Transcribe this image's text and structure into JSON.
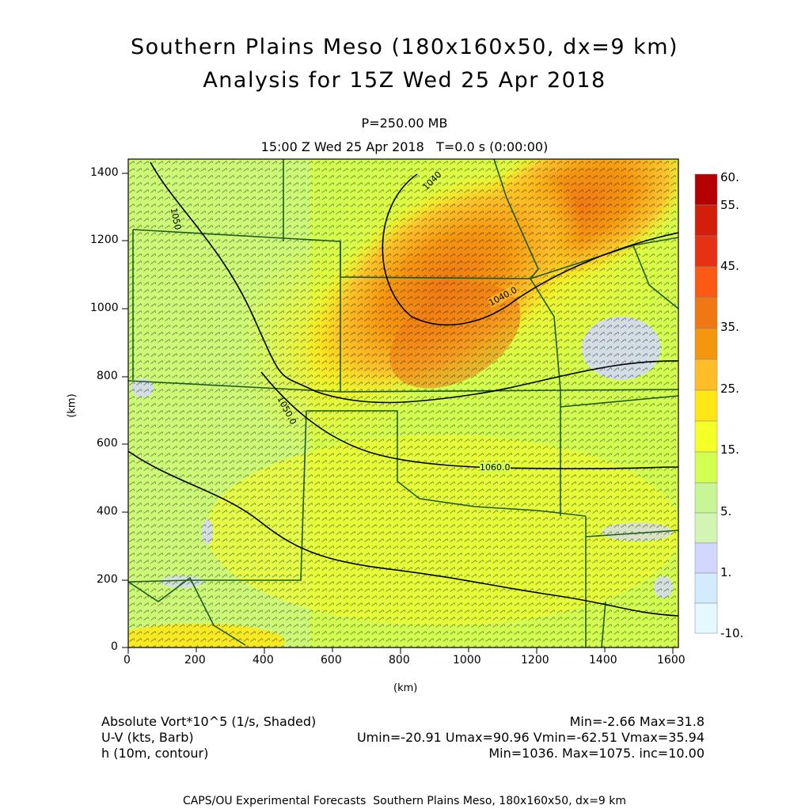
{
  "header": {
    "title_line1": "Southern Plains Meso (180x160x50, dx=9 km)",
    "title_line2": "Analysis for 15Z Wed 25 Apr 2018",
    "level": "P=250.00 MB",
    "time_line": "15:00 Z Wed 25 Apr 2018   T=0.0 s (0:00:00)"
  },
  "map": {
    "x_axis_label": "(km)",
    "y_axis_label": "(km)",
    "x_ticks": [
      "0",
      "200",
      "400",
      "600",
      "800",
      "1000",
      "1200",
      "1400",
      "1600"
    ],
    "y_ticks": [
      "0",
      "200",
      "400",
      "600",
      "800",
      "1000",
      "1200",
      "1400"
    ],
    "x_range_km": [
      0,
      1610
    ],
    "y_range_km": [
      0,
      1440
    ],
    "contour_labels": [
      "1040.0",
      "1050.0",
      "1060.0"
    ],
    "contour_label_near_top": "1040",
    "contour_label_upper_left": "1050"
  },
  "legend": {
    "labels": [
      "60.",
      "55.",
      "45.",
      "35.",
      "25.",
      "15.",
      "5.",
      "1.",
      "-10."
    ],
    "colors": [
      "#b40000",
      "#d21e0a",
      "#e63214",
      "#fa5a14",
      "#f07814",
      "#f5960f",
      "#ffbe28",
      "#ffe614",
      "#f5ff28",
      "#d2ff50",
      "#c8f596",
      "#d2f5b4",
      "#d2d7ff",
      "#d2ebff",
      "#e6f8ff"
    ]
  },
  "footer": {
    "field1_label": "Absolute Vort*10^5 (1/s, Shaded)",
    "field1_stats": "Min=-2.66 Max=31.8",
    "field2_label": "U-V (kts, Barb)",
    "field2_stats": "Umin=-20.91 Umax=90.96 Vmin=-62.51 Vmax=35.94",
    "field3_label": "h (10m, contour)",
    "field3_stats": "Min=1036. Max=1075. inc=10.00",
    "credit": "CAPS/OU Experimental Forecasts  Southern Plains Meso, 180x160x50, dx=9 km"
  }
}
